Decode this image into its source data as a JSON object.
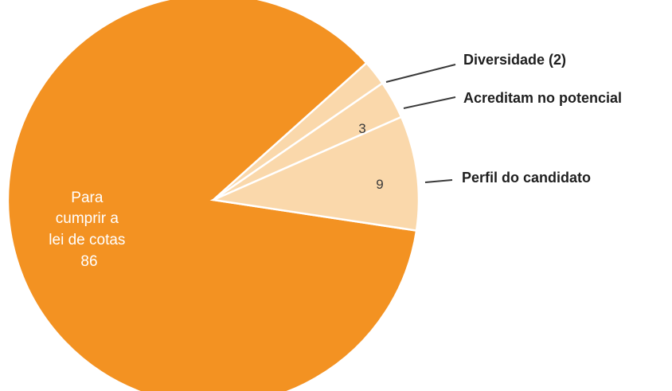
{
  "chart_data": {
    "type": "pie",
    "title": "",
    "slices": [
      {
        "category": "Para cumprir a lei de cotas",
        "value": 86,
        "label_lines": [
          "Para",
          "cumprir a",
          "lei de cotas",
          "86"
        ],
        "color": "#f39222"
      },
      {
        "category": "Perfil do candidato",
        "value": 9,
        "label": "9",
        "color": "#fad8ab"
      },
      {
        "category": "Acreditam no potencial",
        "value": 3,
        "label": "3",
        "color": "#fad8ab"
      },
      {
        "category": "Diversidade (2)",
        "value": 2,
        "label": "",
        "color": "#fad8ab"
      }
    ],
    "legend": [
      "Diversidade (2)",
      "Acreditam no potencial",
      "Perfil do candidato"
    ]
  }
}
